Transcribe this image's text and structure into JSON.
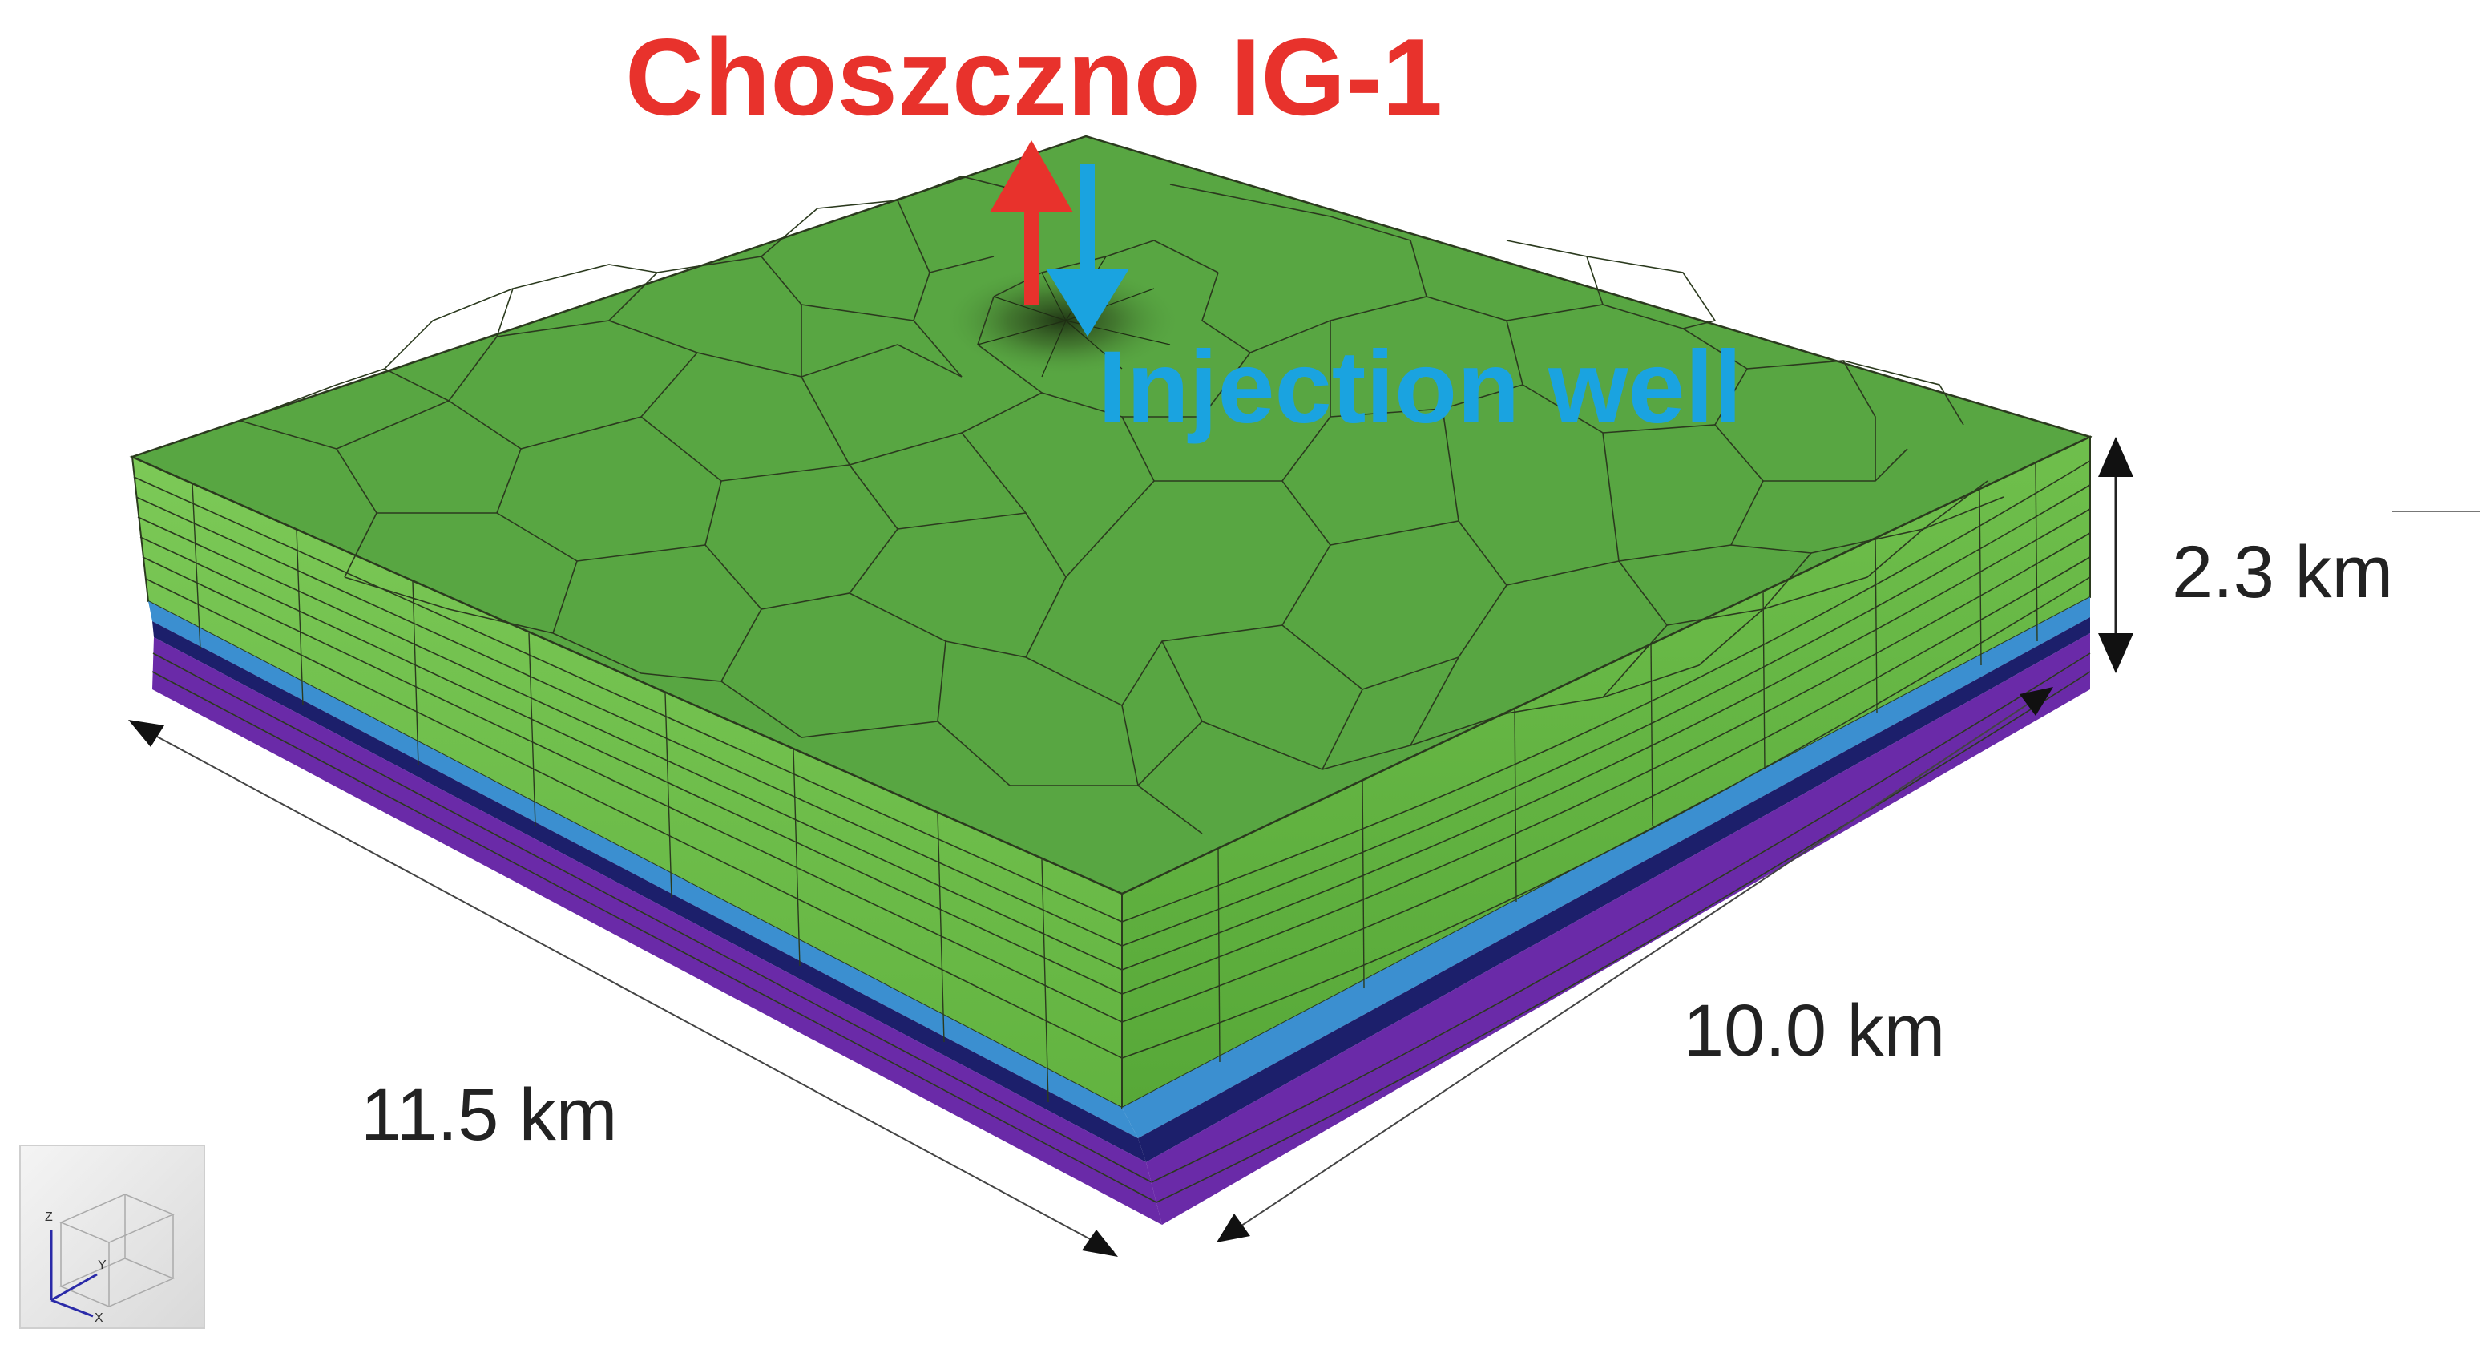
{
  "well": {
    "name": "Choszczno IG-1",
    "injection_label": "Injection well"
  },
  "dimensions": {
    "width": "11.5 km",
    "depth": "10.0 km",
    "height": "2.3 km"
  },
  "axes": {
    "z": "Z",
    "y": "Y",
    "x": "X"
  },
  "colors": {
    "top_surface": "#58a642",
    "side_green": "#6ec14b",
    "cell_lines": "#2b3a1e",
    "blue_layer": "#3b8fd0",
    "dark_layer": "#1c1f6b",
    "purple_layer": "#6a2aa8",
    "producer_arrow": "#e8322c",
    "injector_arrow": "#1aa3e0",
    "well_name": "#e8322c",
    "injection_text": "#1aa3e0"
  },
  "icons": [
    "up-arrow-icon",
    "down-arrow-icon",
    "axis-triad-icon"
  ]
}
